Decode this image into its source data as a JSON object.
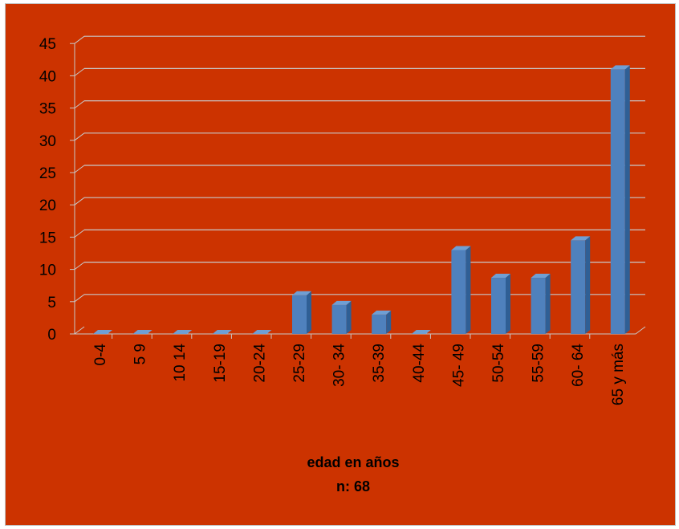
{
  "chart_data": {
    "type": "bar",
    "categories": [
      "0-4",
      "5 9",
      "10 14",
      "15-19",
      "20-24",
      "25-29",
      "30- 34",
      "35-39",
      "40-44",
      "45- 49",
      "50-54",
      "55-59",
      "60- 64",
      "65 y más"
    ],
    "values": [
      0,
      0,
      0,
      0,
      0,
      6,
      4.5,
      3,
      0,
      13,
      8.7,
      8.7,
      14.5,
      41
    ],
    "y_ticks": [
      0,
      5,
      10,
      15,
      20,
      25,
      30,
      35,
      40,
      45
    ],
    "ylim": [
      0,
      45
    ],
    "xlabel": "edad en años",
    "xlabel_line2": "n:  68",
    "grid": true,
    "legend": "none",
    "colors": {
      "background": "#cc3300",
      "bar_front": "#4f81bd",
      "bar_side": "#2f5f95",
      "bar_top": "#6f9fd4",
      "grid": "#c8c8c8"
    }
  }
}
